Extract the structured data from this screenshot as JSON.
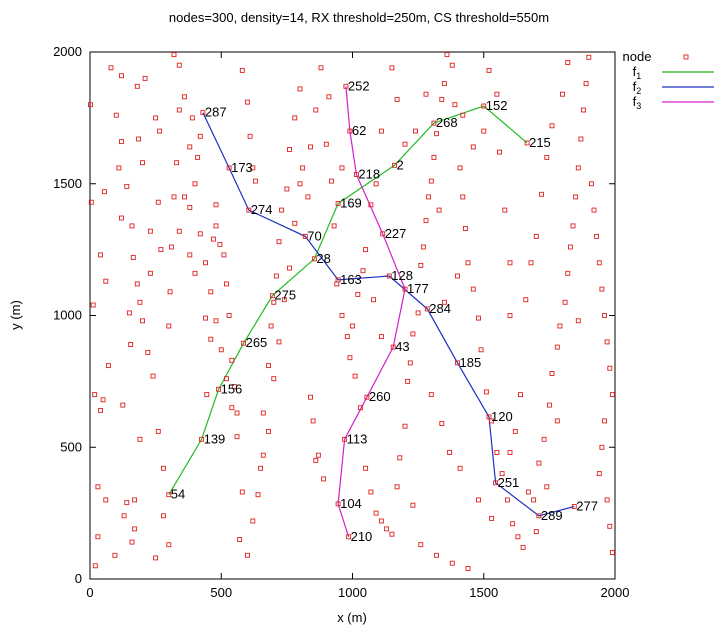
{
  "chart_data": {
    "type": "scatter",
    "title": "nodes=300, density=14, RX threshold=250m, CS threshold=550m",
    "xlabel": "x (m)",
    "ylabel": "y (m)",
    "xlim": [
      0,
      2000
    ],
    "ylim": [
      0,
      2000
    ],
    "xticks": [
      0,
      500,
      1000,
      1500,
      2000
    ],
    "yticks": [
      0,
      500,
      1000,
      1500,
      2000
    ],
    "grid": false,
    "legend_position": "outside-right",
    "legend": [
      {
        "key": "node",
        "label": "node",
        "sub": "",
        "color": "#e02020",
        "kind": "marker"
      },
      {
        "key": "f1",
        "label": "f",
        "sub": "1",
        "color": "#22bb22",
        "kind": "line"
      },
      {
        "key": "f2",
        "label": "f",
        "sub": "2",
        "color": "#1f2fbf",
        "kind": "line"
      },
      {
        "key": "f3",
        "label": "f",
        "sub": "3",
        "color": "#d21fd2",
        "kind": "line"
      }
    ],
    "labeled_nodes": [
      {
        "id": "287",
        "x": 430,
        "y": 1770
      },
      {
        "id": "173",
        "x": 530,
        "y": 1560
      },
      {
        "id": "274",
        "x": 605,
        "y": 1400
      },
      {
        "id": "70",
        "x": 820,
        "y": 1300
      },
      {
        "id": "28",
        "x": 855,
        "y": 1215
      },
      {
        "id": "163",
        "x": 945,
        "y": 1135
      },
      {
        "id": "128",
        "x": 1140,
        "y": 1150
      },
      {
        "id": "284",
        "x": 1285,
        "y": 1025
      },
      {
        "id": "185",
        "x": 1400,
        "y": 820
      },
      {
        "id": "120",
        "x": 1520,
        "y": 615
      },
      {
        "id": "251",
        "x": 1545,
        "y": 365
      },
      {
        "id": "289",
        "x": 1710,
        "y": 240
      },
      {
        "id": "277",
        "x": 1845,
        "y": 275
      },
      {
        "id": "54",
        "x": 300,
        "y": 320
      },
      {
        "id": "139",
        "x": 425,
        "y": 530
      },
      {
        "id": "156",
        "x": 490,
        "y": 720
      },
      {
        "id": "265",
        "x": 585,
        "y": 895
      },
      {
        "id": "275",
        "x": 695,
        "y": 1075
      },
      {
        "id": "169",
        "x": 945,
        "y": 1425
      },
      {
        "id": "2",
        "x": 1160,
        "y": 1570
      },
      {
        "id": "268",
        "x": 1310,
        "y": 1730
      },
      {
        "id": "152",
        "x": 1500,
        "y": 1795
      },
      {
        "id": "215",
        "x": 1665,
        "y": 1655
      },
      {
        "id": "252",
        "x": 975,
        "y": 1870
      },
      {
        "id": "62",
        "x": 990,
        "y": 1700
      },
      {
        "id": "218",
        "x": 1015,
        "y": 1535
      },
      {
        "id": "227",
        "x": 1115,
        "y": 1310
      },
      {
        "id": "177",
        "x": 1200,
        "y": 1100
      },
      {
        "id": "43",
        "x": 1155,
        "y": 880
      },
      {
        "id": "260",
        "x": 1055,
        "y": 690
      },
      {
        "id": "113",
        "x": 970,
        "y": 530
      },
      {
        "id": "104",
        "x": 945,
        "y": 285
      },
      {
        "id": "210",
        "x": 985,
        "y": 160
      }
    ],
    "flows": [
      {
        "name": "f1",
        "color": "#22bb22",
        "path": [
          "54",
          "139",
          "156",
          "265",
          "275",
          "28",
          "169",
          "2",
          "268",
          "152",
          "215"
        ]
      },
      {
        "name": "f2",
        "color": "#1f2fbf",
        "path": [
          "287",
          "173",
          "274",
          "70",
          "163",
          "128",
          "284",
          "185",
          "120",
          "251",
          "289",
          "277"
        ]
      },
      {
        "name": "f3",
        "color": "#d21fd2",
        "path": [
          "252",
          "62",
          "218",
          "227",
          "177",
          "43",
          "260",
          "113",
          "104",
          "210"
        ]
      }
    ],
    "other_nodes": [
      [
        2,
        1800
      ],
      [
        5,
        1430
      ],
      [
        12,
        1040
      ],
      [
        18,
        700
      ],
      [
        30,
        350
      ],
      [
        50,
        680
      ],
      [
        60,
        300
      ],
      [
        55,
        1470
      ],
      [
        40,
        1230
      ],
      [
        70,
        810
      ],
      [
        95,
        90
      ],
      [
        110,
        1560
      ],
      [
        120,
        1910
      ],
      [
        120,
        1370
      ],
      [
        125,
        660
      ],
      [
        130,
        240
      ],
      [
        140,
        290
      ],
      [
        150,
        1010
      ],
      [
        160,
        140
      ],
      [
        170,
        190
      ],
      [
        180,
        1870
      ],
      [
        190,
        1050
      ],
      [
        165,
        1220
      ],
      [
        155,
        890
      ],
      [
        170,
        300
      ],
      [
        190,
        530
      ],
      [
        185,
        1670
      ],
      [
        200,
        1580
      ],
      [
        210,
        1900
      ],
      [
        230,
        1320
      ],
      [
        230,
        1160
      ],
      [
        250,
        1750
      ],
      [
        260,
        1430
      ],
      [
        265,
        1700
      ],
      [
        270,
        1250
      ],
      [
        250,
        80
      ],
      [
        280,
        420
      ],
      [
        300,
        960
      ],
      [
        305,
        1090
      ],
      [
        310,
        1260
      ],
      [
        320,
        1450
      ],
      [
        330,
        1580
      ],
      [
        340,
        1780
      ],
      [
        340,
        1320
      ],
      [
        360,
        1450
      ],
      [
        380,
        1230
      ],
      [
        380,
        1410
      ],
      [
        390,
        1750
      ],
      [
        400,
        1160
      ],
      [
        410,
        1600
      ],
      [
        420,
        1680
      ],
      [
        440,
        990
      ],
      [
        445,
        700
      ],
      [
        460,
        910
      ],
      [
        470,
        1290
      ],
      [
        480,
        1420
      ],
      [
        480,
        1340
      ],
      [
        495,
        1270
      ],
      [
        510,
        1230
      ],
      [
        520,
        1120
      ],
      [
        530,
        1000
      ],
      [
        540,
        830
      ],
      [
        550,
        730
      ],
      [
        560,
        630
      ],
      [
        570,
        150
      ],
      [
        580,
        1930
      ],
      [
        600,
        1810
      ],
      [
        610,
        1680
      ],
      [
        620,
        1560
      ],
      [
        630,
        1510
      ],
      [
        650,
        420
      ],
      [
        660,
        630
      ],
      [
        680,
        810
      ],
      [
        690,
        960
      ],
      [
        700,
        1050
      ],
      [
        710,
        1150
      ],
      [
        720,
        1280
      ],
      [
        730,
        1400
      ],
      [
        750,
        1480
      ],
      [
        760,
        1630
      ],
      [
        780,
        1750
      ],
      [
        800,
        1860
      ],
      [
        810,
        1560
      ],
      [
        830,
        1450
      ],
      [
        840,
        690
      ],
      [
        850,
        600
      ],
      [
        860,
        450
      ],
      [
        870,
        470
      ],
      [
        890,
        380
      ],
      [
        900,
        1650
      ],
      [
        910,
        1830
      ],
      [
        920,
        1510
      ],
      [
        930,
        1340
      ],
      [
        940,
        1120
      ],
      [
        960,
        1000
      ],
      [
        980,
        920
      ],
      [
        990,
        840
      ],
      [
        1010,
        770
      ],
      [
        1030,
        650
      ],
      [
        1050,
        420
      ],
      [
        1070,
        330
      ],
      [
        1090,
        250
      ],
      [
        1110,
        220
      ],
      [
        1130,
        190
      ],
      [
        1150,
        170
      ],
      [
        1170,
        350
      ],
      [
        1180,
        460
      ],
      [
        1200,
        580
      ],
      [
        1210,
        750
      ],
      [
        1220,
        820
      ],
      [
        1230,
        930
      ],
      [
        1250,
        1010
      ],
      [
        1260,
        1190
      ],
      [
        1270,
        1260
      ],
      [
        1280,
        1360
      ],
      [
        1290,
        1450
      ],
      [
        1300,
        1510
      ],
      [
        1310,
        1600
      ],
      [
        1320,
        1690
      ],
      [
        1340,
        1820
      ],
      [
        1350,
        1880
      ],
      [
        1360,
        1990
      ],
      [
        1390,
        1800
      ],
      [
        1410,
        1560
      ],
      [
        1420,
        1450
      ],
      [
        1430,
        1330
      ],
      [
        1440,
        1200
      ],
      [
        1460,
        1100
      ],
      [
        1480,
        990
      ],
      [
        1490,
        870
      ],
      [
        1510,
        710
      ],
      [
        1530,
        600
      ],
      [
        1550,
        480
      ],
      [
        1570,
        400
      ],
      [
        1590,
        300
      ],
      [
        1610,
        210
      ],
      [
        1630,
        160
      ],
      [
        1650,
        120
      ],
      [
        1670,
        330
      ],
      [
        1690,
        300
      ],
      [
        1710,
        440
      ],
      [
        1730,
        530
      ],
      [
        1750,
        660
      ],
      [
        1760,
        780
      ],
      [
        1780,
        880
      ],
      [
        1790,
        960
      ],
      [
        1810,
        1050
      ],
      [
        1820,
        1160
      ],
      [
        1830,
        1260
      ],
      [
        1840,
        1340
      ],
      [
        1850,
        1450
      ],
      [
        1860,
        1560
      ],
      [
        1870,
        1670
      ],
      [
        1880,
        1780
      ],
      [
        1890,
        1880
      ],
      [
        1900,
        1980
      ],
      [
        1910,
        1500
      ],
      [
        1920,
        1400
      ],
      [
        1930,
        1300
      ],
      [
        1940,
        1200
      ],
      [
        1950,
        1100
      ],
      [
        1960,
        1000
      ],
      [
        1970,
        900
      ],
      [
        1980,
        800
      ],
      [
        1990,
        700
      ],
      [
        1960,
        600
      ],
      [
        1950,
        500
      ],
      [
        1940,
        400
      ],
      [
        1970,
        300
      ],
      [
        1980,
        200
      ],
      [
        1990,
        100
      ],
      [
        1860,
        980
      ],
      [
        1780,
        600
      ],
      [
        1740,
        350
      ],
      [
        1700,
        180
      ],
      [
        1600,
        1000
      ],
      [
        1580,
        1400
      ],
      [
        1560,
        1620
      ],
      [
        1550,
        1840
      ],
      [
        1520,
        1930
      ],
      [
        1500,
        1700
      ],
      [
        1460,
        1640
      ],
      [
        1420,
        1760
      ],
      [
        1380,
        1950
      ],
      [
        1330,
        1400
      ],
      [
        1280,
        1840
      ],
      [
        1240,
        1700
      ],
      [
        1200,
        1650
      ],
      [
        1170,
        1820
      ],
      [
        1150,
        1940
      ],
      [
        1110,
        1700
      ],
      [
        1090,
        1500
      ],
      [
        1070,
        1420
      ],
      [
        1050,
        1250
      ],
      [
        1040,
        1170
      ],
      [
        1020,
        1080
      ],
      [
        1000,
        960
      ],
      [
        960,
        1560
      ],
      [
        880,
        1940
      ],
      [
        860,
        1780
      ],
      [
        840,
        1640
      ],
      [
        800,
        1500
      ],
      [
        780,
        1350
      ],
      [
        760,
        1180
      ],
      [
        740,
        1060
      ],
      [
        720,
        900
      ],
      [
        700,
        760
      ],
      [
        680,
        560
      ],
      [
        660,
        470
      ],
      [
        640,
        320
      ],
      [
        620,
        220
      ],
      [
        600,
        90
      ],
      [
        580,
        330
      ],
      [
        560,
        540
      ],
      [
        540,
        650
      ],
      [
        520,
        760
      ],
      [
        500,
        870
      ],
      [
        480,
        980
      ],
      [
        460,
        1090
      ],
      [
        440,
        1200
      ],
      [
        420,
        1310
      ],
      [
        400,
        1500
      ],
      [
        380,
        1640
      ],
      [
        360,
        1830
      ],
      [
        340,
        1950
      ],
      [
        320,
        1990
      ],
      [
        300,
        130
      ],
      [
        280,
        240
      ],
      [
        260,
        560
      ],
      [
        240,
        770
      ],
      [
        220,
        860
      ],
      [
        200,
        980
      ],
      [
        180,
        1120
      ],
      [
        160,
        1340
      ],
      [
        140,
        1490
      ],
      [
        120,
        1660
      ],
      [
        100,
        1760
      ],
      [
        80,
        1940
      ],
      [
        60,
        1130
      ],
      [
        40,
        640
      ],
      [
        30,
        160
      ],
      [
        20,
        50
      ],
      [
        1440,
        40
      ],
      [
        1380,
        60
      ],
      [
        1320,
        90
      ],
      [
        1260,
        130
      ],
      [
        1230,
        280
      ],
      [
        1300,
        700
      ],
      [
        1340,
        590
      ],
      [
        1370,
        480
      ],
      [
        1410,
        420
      ],
      [
        1480,
        300
      ],
      [
        1530,
        230
      ],
      [
        1600,
        480
      ],
      [
        1620,
        560
      ],
      [
        1640,
        700
      ],
      [
        1660,
        1060
      ],
      [
        1680,
        1200
      ],
      [
        1700,
        1300
      ],
      [
        1720,
        1460
      ],
      [
        1740,
        1600
      ],
      [
        1760,
        1720
      ],
      [
        1800,
        1840
      ],
      [
        1820,
        1960
      ],
      [
        1600,
        1200
      ],
      [
        1400,
        1150
      ],
      [
        1350,
        1050
      ],
      [
        1080,
        1060
      ],
      [
        1110,
        920
      ]
    ]
  }
}
